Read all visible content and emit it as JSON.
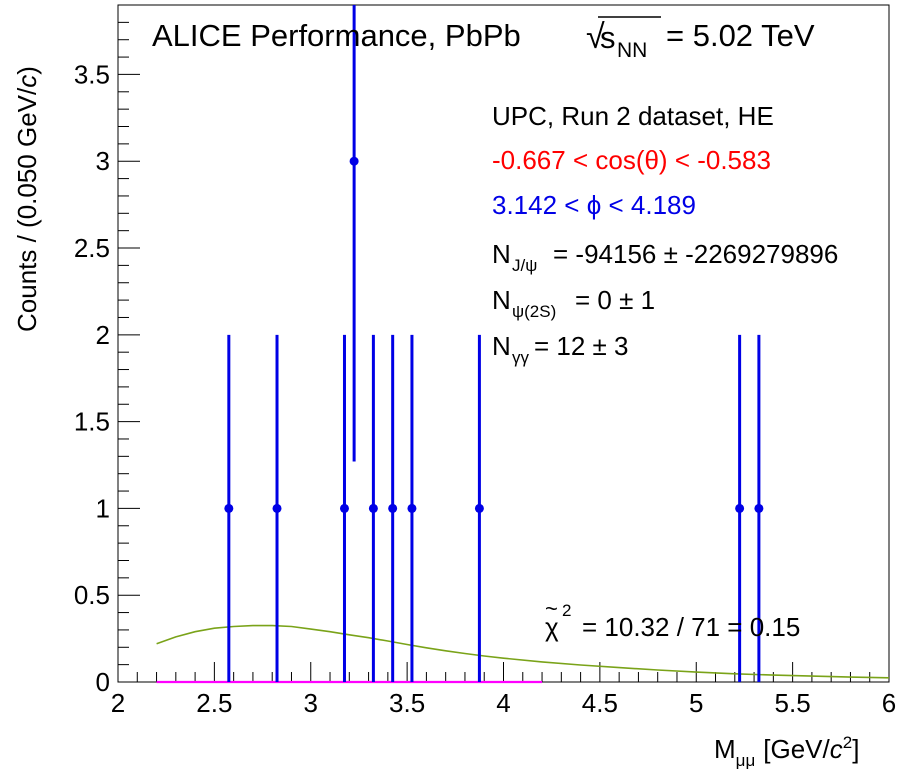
{
  "chart_data": {
    "type": "scatter",
    "title": "ALICE Performance, PbPb",
    "energy_label": "= 5.02 TeV",
    "sqrt_symbol": "√",
    "energy_var": "s",
    "energy_sub": "NN",
    "xlabel_main": "M",
    "xlabel_sub": "μμ",
    "xlabel_unit_open": "[GeV/",
    "xlabel_unit_c": "c",
    "xlabel_unit_pow": "2",
    "xlabel_unit_close": "]",
    "ylabel_main": "Counts / (0.050 GeV/",
    "ylabel_c": "c",
    "ylabel_close": ")",
    "xlim": [
      2,
      6
    ],
    "ylim": [
      0,
      3.9
    ],
    "xticks": [
      {
        "v": 2,
        "label": "2"
      },
      {
        "v": 2.5,
        "label": "2.5"
      },
      {
        "v": 3,
        "label": "3"
      },
      {
        "v": 3.5,
        "label": "3.5"
      },
      {
        "v": 4,
        "label": "4"
      },
      {
        "v": 4.5,
        "label": "4.5"
      },
      {
        "v": 5,
        "label": "5"
      },
      {
        "v": 5.5,
        "label": "5.5"
      },
      {
        "v": 6,
        "label": "6"
      }
    ],
    "yticks": [
      {
        "v": 0,
        "label": "0"
      },
      {
        "v": 0.5,
        "label": "0.5"
      },
      {
        "v": 1,
        "label": "1"
      },
      {
        "v": 1.5,
        "label": "1.5"
      },
      {
        "v": 2,
        "label": "2"
      },
      {
        "v": 2.5,
        "label": "2.5"
      },
      {
        "v": 3,
        "label": "3"
      },
      {
        "v": 3.5,
        "label": "3.5"
      }
    ],
    "series": [
      {
        "color": "#0000e6",
        "points": [
          {
            "x": 2.575,
            "y": 1,
            "err_low": 1,
            "err_high": 1
          },
          {
            "x": 2.825,
            "y": 1,
            "err_low": 1,
            "err_high": 1
          },
          {
            "x": 3.175,
            "y": 1,
            "err_low": 1,
            "err_high": 1
          },
          {
            "x": 3.225,
            "y": 3,
            "err_low": 1.73,
            "err_high": 1.73
          },
          {
            "x": 3.325,
            "y": 1,
            "err_low": 1,
            "err_high": 1
          },
          {
            "x": 3.425,
            "y": 1,
            "err_low": 1,
            "err_high": 1
          },
          {
            "x": 3.525,
            "y": 1,
            "err_low": 1,
            "err_high": 1
          },
          {
            "x": 3.875,
            "y": 1,
            "err_low": 1,
            "err_high": 1
          },
          {
            "x": 5.225,
            "y": 1,
            "err_low": 1,
            "err_high": 1
          },
          {
            "x": 5.325,
            "y": 1,
            "err_low": 1,
            "err_high": 1
          }
        ]
      },
      {
        "color": "#7aa319",
        "curve": [
          [
            2.2,
            0.22
          ],
          [
            2.3,
            0.26
          ],
          [
            2.4,
            0.29
          ],
          [
            2.5,
            0.31
          ],
          [
            2.6,
            0.32
          ],
          [
            2.7,
            0.325
          ],
          [
            2.8,
            0.325
          ],
          [
            2.9,
            0.32
          ],
          [
            3.0,
            0.305
          ],
          [
            3.1,
            0.29
          ],
          [
            3.2,
            0.272
          ],
          [
            3.3,
            0.255
          ],
          [
            3.4,
            0.236
          ],
          [
            3.5,
            0.216
          ],
          [
            3.6,
            0.197
          ],
          [
            3.7,
            0.18
          ],
          [
            3.8,
            0.164
          ],
          [
            3.9,
            0.15
          ],
          [
            4.0,
            0.137
          ],
          [
            4.2,
            0.116
          ],
          [
            4.4,
            0.098
          ],
          [
            4.6,
            0.083
          ],
          [
            4.8,
            0.069
          ],
          [
            5.0,
            0.057
          ],
          [
            5.2,
            0.047
          ],
          [
            5.4,
            0.04
          ],
          [
            5.6,
            0.034
          ],
          [
            5.8,
            0.028
          ],
          [
            6.0,
            0.024
          ]
        ]
      },
      {
        "color": "#ff00ff",
        "curve": [
          [
            2.2,
            0.0
          ],
          [
            4.2,
            0.0
          ]
        ]
      }
    ],
    "annotations": {
      "line1": "UPC, Run 2 dataset, HE",
      "line2": "-0.667 < cos(θ) < -0.583",
      "line2_color": "#ff0000",
      "line3": "3.142 < ϕ < 4.189",
      "line3_color": "#0000e6",
      "n_jpsi_sym": "N",
      "n_jpsi_sub": "J/ψ",
      "n_jpsi_val": "= -94156 ± -2269279896",
      "n_psi2s_sym": "N",
      "n_psi2s_sub": "ψ(2S)",
      "n_psi2s_val": "= 0 ± 1",
      "n_gg_sym": "N",
      "n_gg_sub": "γγ",
      "n_gg_val": "= 12 ± 3",
      "chi2_sym": "χ",
      "chi2_tilde": "~",
      "chi2_pow": "2",
      "chi2_val": "= 10.32 / 71 = 0.15"
    }
  }
}
